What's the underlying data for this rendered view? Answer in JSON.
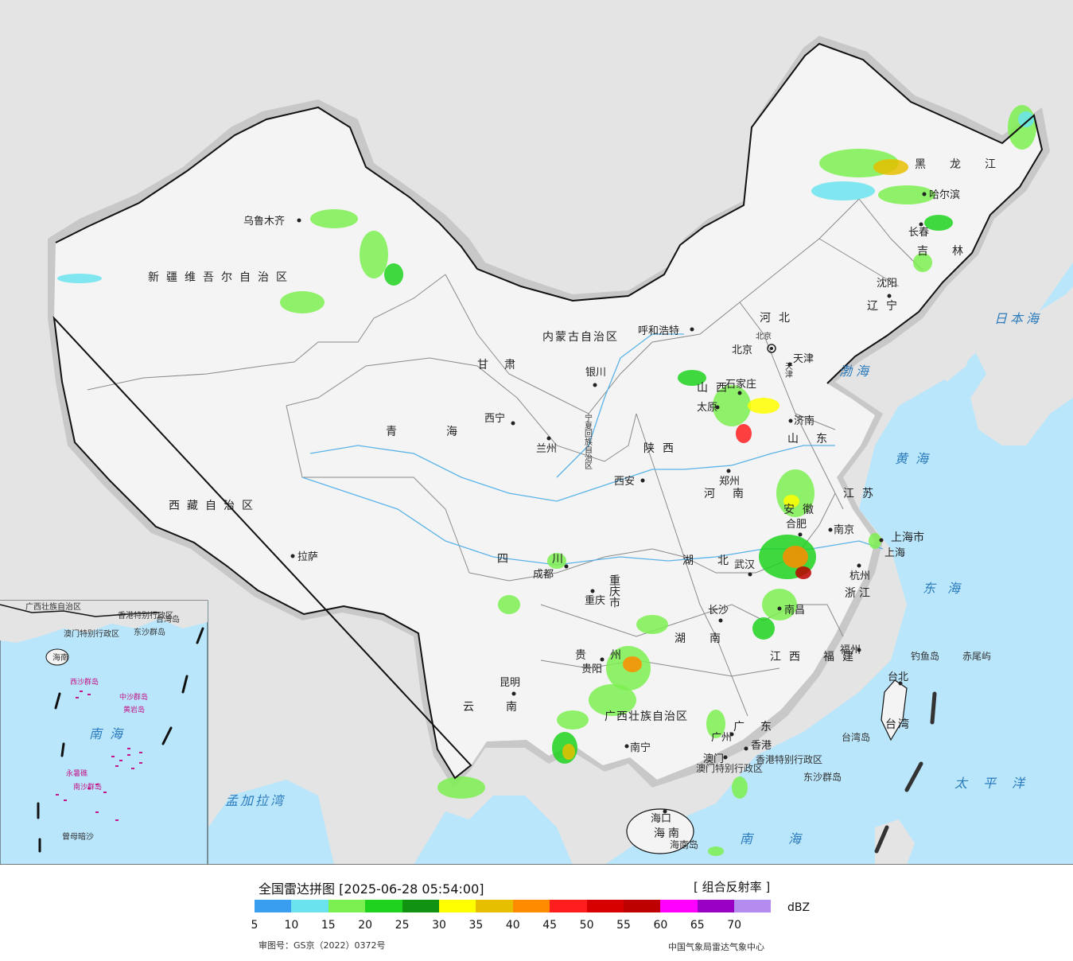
{
  "map": {
    "colors": {
      "sea": "#b9e6fb",
      "foreign_land": "#e4e4e4",
      "china_land": "#f4f4f4",
      "border": "#111111",
      "border_halo": "#c8c8c8",
      "river": "#5ab3e8"
    },
    "regions": [
      {
        "name": "xinjiang",
        "label": "新疆维吾尔自治区"
      },
      {
        "name": "xizang",
        "label": "西藏自治区"
      },
      {
        "name": "qinghai",
        "label": "青海"
      },
      {
        "name": "gansu",
        "label": "甘肃"
      },
      {
        "name": "neimenggu",
        "label": "内蒙古自治区"
      },
      {
        "name": "heilongjiang",
        "label": "黑龙江"
      },
      {
        "name": "jilin",
        "label": "吉林"
      },
      {
        "name": "liaoning",
        "label": "辽宁"
      },
      {
        "name": "hebei",
        "label": "河北"
      },
      {
        "name": "shanxi",
        "label": "山西"
      },
      {
        "name": "shaanxi",
        "label": "陕西"
      },
      {
        "name": "henan",
        "label": "河南"
      },
      {
        "name": "shandong",
        "label": "山东"
      },
      {
        "name": "jiangsu",
        "label": "江苏"
      },
      {
        "name": "anhui",
        "label": "安徽"
      },
      {
        "name": "hubei",
        "label": "湖北"
      },
      {
        "name": "hunan",
        "label": "湖南"
      },
      {
        "name": "jiangxi",
        "label": "江西"
      },
      {
        "name": "zhejiang",
        "label": "浙江"
      },
      {
        "name": "fujian",
        "label": "福建"
      },
      {
        "name": "sichuan",
        "label": "四川"
      },
      {
        "name": "guizhou",
        "label": "贵州"
      },
      {
        "name": "yunnan",
        "label": "云南"
      },
      {
        "name": "guangxi",
        "label": "广西壮族自治区"
      },
      {
        "name": "guangdong",
        "label": "广东"
      },
      {
        "name": "hainan",
        "label": "海南"
      },
      {
        "name": "taiwan",
        "label": "台湾"
      },
      {
        "name": "ningxia",
        "label": "宁夏回族自治区"
      },
      {
        "name": "chongqing",
        "label": "重庆市"
      },
      {
        "name": "shanghai",
        "label": "上海市"
      },
      {
        "name": "tianjin",
        "label": "天津"
      },
      {
        "name": "beijing",
        "label": "北京"
      },
      {
        "name": "hongkong",
        "label": "香港特别行政区"
      },
      {
        "name": "macao",
        "label": "澳门特别行政区"
      }
    ],
    "cities": [
      "乌鲁木齐",
      "拉萨",
      "西宁",
      "兰州",
      "银川",
      "呼和浩特",
      "北京",
      "天津",
      "石家庄",
      "太原",
      "济南",
      "郑州",
      "西安",
      "成都",
      "重庆",
      "贵阳",
      "昆明",
      "南宁",
      "长沙",
      "武汉",
      "南昌",
      "合肥",
      "南京",
      "上海",
      "杭州",
      "福州",
      "台北",
      "广州",
      "香港",
      "澳门",
      "海口",
      "沈阳",
      "长春",
      "哈尔滨"
    ],
    "seas": [
      "渤海",
      "黄海",
      "东海",
      "日本海",
      "南海",
      "太平洋",
      "孟加拉湾"
    ],
    "islands": [
      "钓鱼岛",
      "赤尾屿",
      "台湾岛",
      "东沙群岛",
      "海南岛"
    ],
    "inset": {
      "labels": [
        "广西壮族自治区",
        "香港特别行政区",
        "澳门特别行政区",
        "海南",
        "台湾岛",
        "东沙群岛",
        "西沙群岛",
        "中沙群岛",
        "黄岩岛",
        "南海",
        "永暑礁",
        "南沙群岛",
        "曾母暗沙"
      ]
    }
  },
  "legend": {
    "title": "全国雷达拼图 [2025-06-28 05:54:00]",
    "product": "[ 组合反射率 ]",
    "unit": "dBZ",
    "colors": [
      "#3a9ef0",
      "#6be3ef",
      "#7cf050",
      "#1fd21f",
      "#119311",
      "#ffff00",
      "#e6c000",
      "#ff8c00",
      "#ff1e1e",
      "#d60000",
      "#bd0000",
      "#ff00ff",
      "#9a00c4",
      "#b48cf0"
    ],
    "ticks": [
      "5",
      "10",
      "15",
      "20",
      "25",
      "30",
      "35",
      "40",
      "45",
      "50",
      "55",
      "60",
      "65",
      "70"
    ],
    "approval": "审图号：GS京（2022）0372号",
    "producer": "中国气象局雷达气象中心"
  }
}
